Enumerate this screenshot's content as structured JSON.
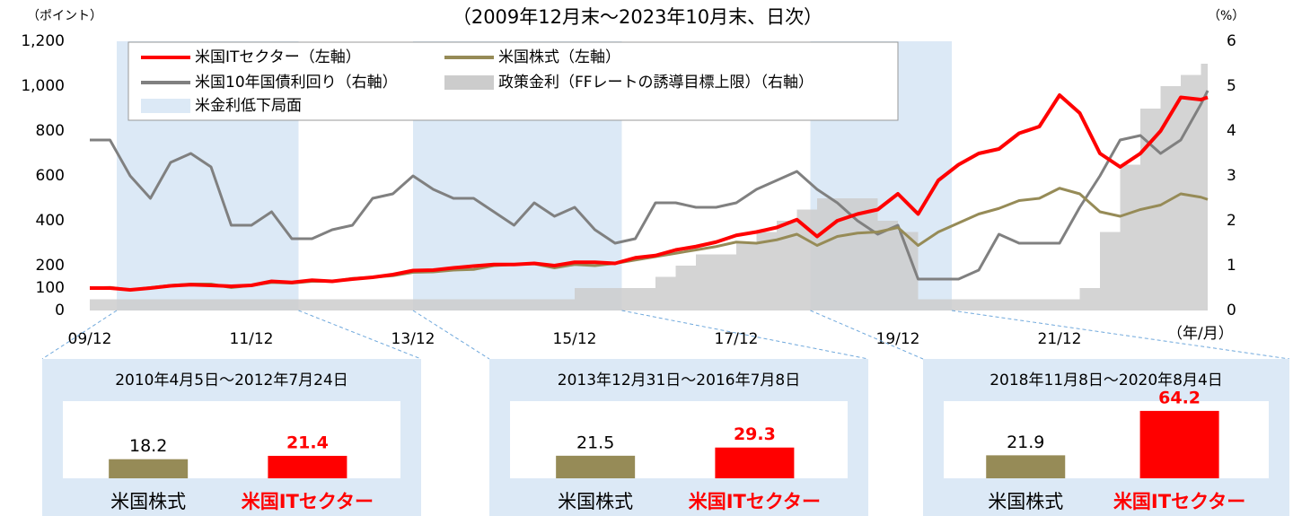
{
  "chart_data": [
    {
      "type": "line",
      "title": "（2009年12月末～2023年10月末、日次）",
      "y_label": "（ポイント）",
      "y2_label": "（%）",
      "x_label": "（年/月）",
      "x": [
        "09/12",
        "10/03",
        "10/06",
        "10/09",
        "10/12",
        "11/03",
        "11/06",
        "11/09",
        "11/12",
        "12/03",
        "12/06",
        "12/09",
        "12/12",
        "13/03",
        "13/06",
        "13/09",
        "13/12",
        "14/03",
        "14/06",
        "14/09",
        "14/12",
        "15/03",
        "15/06",
        "15/09",
        "15/12",
        "16/03",
        "16/06",
        "16/09",
        "16/12",
        "17/03",
        "17/06",
        "17/09",
        "17/12",
        "18/03",
        "18/06",
        "18/09",
        "18/12",
        "19/03",
        "19/06",
        "19/09",
        "19/12",
        "20/03",
        "20/06",
        "20/09",
        "20/12",
        "21/03",
        "21/06",
        "21/09",
        "21/12",
        "22/03",
        "22/06",
        "22/09",
        "22/12",
        "23/03",
        "23/06",
        "23/09",
        "23/10"
      ],
      "xticks": [
        "09/12",
        "11/12",
        "13/12",
        "15/12",
        "17/12",
        "19/12",
        "21/12"
      ],
      "ylim": [
        0,
        1200
      ],
      "yticks": [
        0,
        100,
        200,
        400,
        600,
        800,
        {
          "value": 1000,
          "label": "1,000"
        },
        {
          "value": 1200,
          "label": "1,200"
        }
      ],
      "y2lim": [
        0,
        6
      ],
      "y2ticks": [
        0,
        1,
        2,
        3,
        4,
        5,
        6
      ],
      "bands": {
        "name": "米金利低下局面",
        "color": "#dce9f6",
        "ranges": [
          {
            "start": "10/04",
            "end": "12/07"
          },
          {
            "start": "13/12",
            "end": "16/07"
          },
          {
            "start": "18/11",
            "end": "20/08"
          }
        ]
      },
      "series": [
        {
          "name": "政策金利（FFレートの誘導目標上限）（右軸）",
          "color": "#cccccc",
          "axis": "y2",
          "style": "step-area",
          "values": [
            0.25,
            0.25,
            0.25,
            0.25,
            0.25,
            0.25,
            0.25,
            0.25,
            0.25,
            0.25,
            0.25,
            0.25,
            0.25,
            0.25,
            0.25,
            0.25,
            0.25,
            0.25,
            0.25,
            0.25,
            0.25,
            0.25,
            0.25,
            0.25,
            0.5,
            0.5,
            0.5,
            0.5,
            0.75,
            1.0,
            1.25,
            1.25,
            1.5,
            1.75,
            2.0,
            2.25,
            2.5,
            2.5,
            2.5,
            2.0,
            1.75,
            0.25,
            0.25,
            0.25,
            0.25,
            0.25,
            0.25,
            0.25,
            0.25,
            0.5,
            1.75,
            3.25,
            4.5,
            5.0,
            5.25,
            5.5,
            5.5
          ]
        },
        {
          "name": "米国10年国債利回り（右軸）",
          "color": "#808080",
          "axis": "y2",
          "style": "line",
          "values": [
            3.8,
            3.8,
            3.0,
            2.5,
            3.3,
            3.5,
            3.2,
            1.9,
            1.9,
            2.2,
            1.6,
            1.6,
            1.8,
            1.9,
            2.5,
            2.6,
            3.0,
            2.7,
            2.5,
            2.5,
            2.2,
            1.9,
            2.4,
            2.1,
            2.3,
            1.8,
            1.5,
            1.6,
            2.4,
            2.4,
            2.3,
            2.3,
            2.4,
            2.7,
            2.9,
            3.1,
            2.7,
            2.4,
            2.0,
            1.7,
            1.9,
            0.7,
            0.7,
            0.7,
            0.9,
            1.7,
            1.5,
            1.5,
            1.5,
            2.3,
            3.0,
            3.8,
            3.9,
            3.5,
            3.8,
            4.6,
            4.9
          ]
        },
        {
          "name": "米国株式（左軸）",
          "color": "#968b57",
          "axis": "y",
          "style": "line",
          "values": [
            100,
            103,
            92,
            102,
            112,
            118,
            118,
            102,
            112,
            125,
            122,
            130,
            130,
            143,
            148,
            155,
            170,
            172,
            180,
            183,
            200,
            205,
            208,
            190,
            205,
            200,
            210,
            225,
            240,
            255,
            270,
            285,
            305,
            300,
            315,
            340,
            290,
            330,
            345,
            350,
            370,
            290,
            350,
            390,
            430,
            455,
            490,
            500,
            545,
            520,
            440,
            420,
            450,
            470,
            520,
            505,
            495
          ]
        },
        {
          "name": "米国ITセクター（左軸）",
          "color": "#ff0000",
          "axis": "y",
          "style": "line",
          "values": [
            100,
            100,
            92,
            100,
            110,
            115,
            112,
            108,
            112,
            130,
            125,
            135,
            130,
            140,
            148,
            160,
            178,
            180,
            190,
            198,
            205,
            205,
            210,
            200,
            215,
            215,
            210,
            235,
            245,
            270,
            285,
            305,
            335,
            350,
            370,
            405,
            330,
            400,
            430,
            450,
            520,
            430,
            580,
            650,
            700,
            720,
            790,
            820,
            960,
            880,
            700,
            640,
            700,
            800,
            950,
            940,
            950
          ]
        }
      ]
    },
    {
      "type": "bar",
      "title": "2010年4月5日～2012年7月24日",
      "categories": [
        "米国株式",
        "米国ITセクター"
      ],
      "values": [
        18.2,
        21.4
      ],
      "colors": [
        "#968b57",
        "#ff0000"
      ]
    },
    {
      "type": "bar",
      "title": "2013年12月31日～2016年7月8日",
      "categories": [
        "米国株式",
        "米国ITセクター"
      ],
      "values": [
        21.5,
        29.3
      ],
      "colors": [
        "#968b57",
        "#ff0000"
      ]
    },
    {
      "type": "bar",
      "title": "2018年11月8日～2020年8月4日",
      "categories": [
        "米国株式",
        "米国ITセクター"
      ],
      "values": [
        21.9,
        64.2
      ],
      "colors": [
        "#968b57",
        "#ff0000"
      ]
    }
  ]
}
